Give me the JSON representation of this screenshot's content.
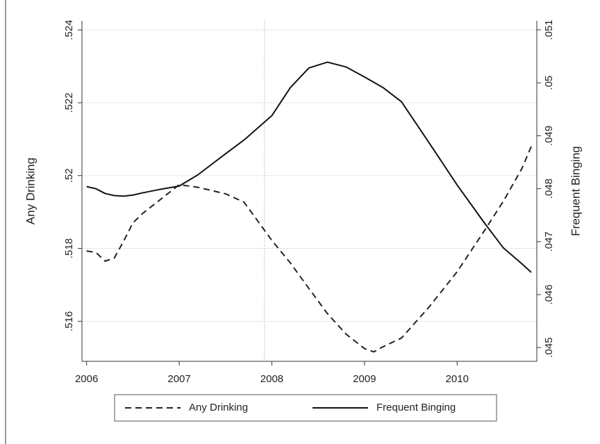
{
  "chart_data": {
    "type": "line",
    "x": [
      2006.0,
      2006.1,
      2006.2,
      2006.3,
      2006.4,
      2006.5,
      2006.6,
      2006.8,
      2007.0,
      2007.2,
      2007.5,
      2007.7,
      2008.0,
      2008.2,
      2008.4,
      2008.6,
      2008.8,
      2009.0,
      2009.1,
      2009.2,
      2009.4,
      2009.7,
      2010.0,
      2010.3,
      2010.5,
      2010.7,
      2010.8
    ],
    "series": [
      {
        "name": "Any Drinking",
        "color": "#222222",
        "dash": true,
        "values": [
          0.51793,
          0.51789,
          0.51765,
          0.51774,
          0.5182,
          0.5187,
          0.51895,
          0.51935,
          0.51975,
          0.51968,
          0.5195,
          0.51927,
          0.51822,
          0.5176,
          0.5169,
          0.51621,
          0.51565,
          0.51525,
          0.51516,
          0.5153,
          0.51554,
          0.5164,
          0.51736,
          0.51851,
          0.5193,
          0.5202,
          0.5208
        ]
      },
      {
        "name": "Frequent Binging",
        "color": "#111111",
        "dash": false,
        "axis": "y2",
        "values": [
          0.04804,
          0.048,
          0.04791,
          0.04787,
          0.04786,
          0.04788,
          0.04792,
          0.04799,
          0.04805,
          0.04826,
          0.04866,
          0.04892,
          0.04938,
          0.04991,
          0.05028,
          0.05039,
          0.0503,
          0.05011,
          0.05001,
          0.04991,
          0.04964,
          0.04886,
          0.04807,
          0.04734,
          0.04688,
          0.04658,
          0.04642
        ]
      }
    ],
    "ylabel": "Any Drinking",
    "y2label": "Frequent Binging",
    "xlim": [
      2005.95,
      2010.86
    ],
    "xticks": [
      2006,
      2007,
      2008,
      2009,
      2010
    ],
    "ylim": [
      0.5149,
      0.52425
    ],
    "yticks": [
      {
        "value": 0.516,
        "label": ".516"
      },
      {
        "value": 0.518,
        "label": ".518"
      },
      {
        "value": 0.52,
        "label": ".52"
      },
      {
        "value": 0.522,
        "label": ".522"
      },
      {
        "value": 0.524,
        "label": ".524"
      }
    ],
    "y2lim": [
      0.04474,
      0.05117
    ],
    "y2ticks": [
      {
        "value": 0.045,
        "label": ".045"
      },
      {
        "value": 0.046,
        "label": ".046"
      },
      {
        "value": 0.047,
        "label": ".047"
      },
      {
        "value": 0.048,
        "label": ".048"
      },
      {
        "value": 0.049,
        "label": ".049"
      },
      {
        "value": 0.05,
        "label": ".05"
      },
      {
        "value": 0.051,
        "label": ".051"
      }
    ],
    "reference_line_x": 2007.92,
    "grid": true,
    "legend": "bottom"
  }
}
